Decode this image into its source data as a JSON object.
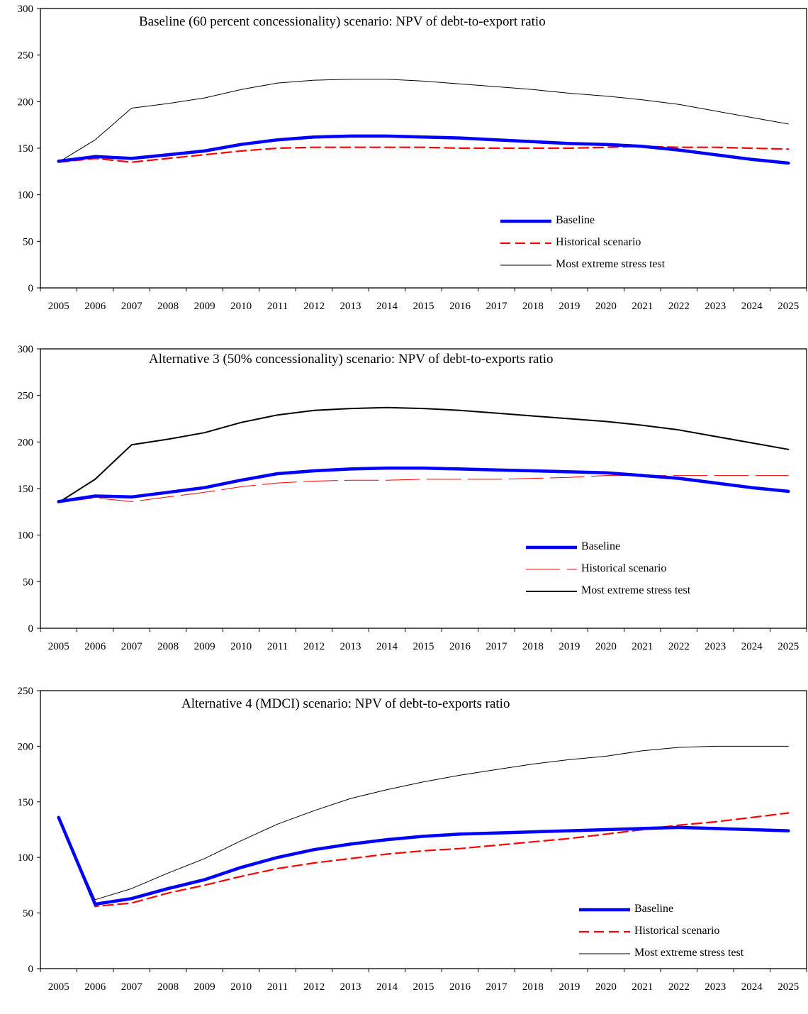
{
  "chart_data": [
    {
      "type": "line",
      "title": "Baseline (60 percent concessionality) scenario: NPV of debt-to-export ratio",
      "xlabel": "",
      "ylabel": "",
      "ylim": [
        0,
        300
      ],
      "yticks": [
        0,
        50,
        100,
        150,
        200,
        250,
        300
      ],
      "grid": false,
      "legend": "bottom-right",
      "x": [
        "2005",
        "2006",
        "2007",
        "2008",
        "2009",
        "2010",
        "2011",
        "2012",
        "2013",
        "2014",
        "2015",
        "2016",
        "2017",
        "2018",
        "2019",
        "2020",
        "2021",
        "2022",
        "2023",
        "2024",
        "2025"
      ],
      "series": [
        {
          "name": "Baseline",
          "color": "#0000ff",
          "style": "thick-solid",
          "values": [
            136,
            141,
            139,
            143,
            147,
            154,
            159,
            162,
            163,
            163,
            162,
            161,
            159,
            157,
            155,
            154,
            152,
            148,
            143,
            138,
            134
          ]
        },
        {
          "name": "Historical scenario",
          "color": "#ff0000",
          "style": "dashed",
          "values": [
            135,
            139,
            135,
            139,
            143,
            147,
            150,
            151,
            151,
            151,
            151,
            150,
            150,
            150,
            150,
            151,
            152,
            151,
            151,
            150,
            149
          ]
        },
        {
          "name": "Most extreme stress test",
          "color": "#000000",
          "style": "thin-solid",
          "values": [
            135,
            159,
            193,
            198,
            204,
            213,
            220,
            223,
            224,
            224,
            222,
            219,
            216,
            213,
            209,
            206,
            202,
            197,
            190,
            183,
            176
          ]
        }
      ]
    },
    {
      "type": "line",
      "title": "Alternative 3 (50% concessionality) scenario: NPV of debt-to-exports ratio",
      "xlabel": "",
      "ylabel": "",
      "ylim": [
        0,
        300
      ],
      "yticks": [
        0,
        50,
        100,
        150,
        200,
        250,
        300
      ],
      "grid": false,
      "legend": "bottom-right",
      "x": [
        "2005",
        "2006",
        "2007",
        "2008",
        "2009",
        "2010",
        "2011",
        "2012",
        "2013",
        "2014",
        "2015",
        "2016",
        "2017",
        "2018",
        "2019",
        "2020",
        "2021",
        "2022",
        "2023",
        "2024",
        "2025"
      ],
      "series": [
        {
          "name": "Baseline",
          "color": "#0000ff",
          "style": "thick-solid",
          "values": [
            136,
            142,
            141,
            146,
            151,
            159,
            166,
            169,
            171,
            172,
            172,
            171,
            170,
            169,
            168,
            167,
            164,
            161,
            156,
            151,
            147
          ]
        },
        {
          "name": "Historical scenario",
          "color": "#ff0000",
          "style": "thin-dashed",
          "values": [
            135,
            140,
            136,
            141,
            146,
            152,
            156,
            158,
            159,
            159,
            160,
            160,
            160,
            161,
            162,
            164,
            164,
            164,
            164,
            164,
            164
          ]
        },
        {
          "name": "Most extreme stress test",
          "color": "#000000",
          "style": "medium-solid",
          "values": [
            135,
            160,
            197,
            203,
            210,
            221,
            229,
            234,
            236,
            237,
            236,
            234,
            231,
            228,
            225,
            222,
            218,
            213,
            206,
            199,
            192
          ]
        }
      ]
    },
    {
      "type": "line",
      "title": "Alternative 4 (MDCI) scenario: NPV of debt-to-exports ratio",
      "xlabel": "",
      "ylabel": "",
      "ylim": [
        0,
        250
      ],
      "yticks": [
        0,
        50,
        100,
        150,
        200,
        250
      ],
      "grid": false,
      "legend": "bottom-right",
      "x": [
        "2005",
        "2006",
        "2007",
        "2008",
        "2009",
        "2010",
        "2011",
        "2012",
        "2013",
        "2014",
        "2015",
        "2016",
        "2017",
        "2018",
        "2019",
        "2020",
        "2021",
        "2022",
        "2023",
        "2024",
        "2025"
      ],
      "series": [
        {
          "name": "Baseline",
          "color": "#0000ff",
          "style": "thick-solid",
          "values": [
            136,
            58,
            63,
            72,
            80,
            91,
            100,
            107,
            112,
            116,
            119,
            121,
            122,
            123,
            124,
            125,
            126,
            127,
            126,
            125,
            124
          ]
        },
        {
          "name": "Historical scenario",
          "color": "#ff0000",
          "style": "dashed",
          "values": [
            136,
            56,
            59,
            68,
            75,
            83,
            90,
            95,
            99,
            103,
            106,
            108,
            111,
            114,
            117,
            121,
            125,
            129,
            132,
            136,
            140
          ]
        },
        {
          "name": "Most extreme stress test",
          "color": "#000000",
          "style": "thin-solid",
          "values": [
            136,
            62,
            72,
            86,
            99,
            115,
            130,
            142,
            153,
            161,
            168,
            174,
            179,
            184,
            188,
            191,
            196,
            199,
            200,
            200,
            200
          ]
        }
      ]
    }
  ]
}
